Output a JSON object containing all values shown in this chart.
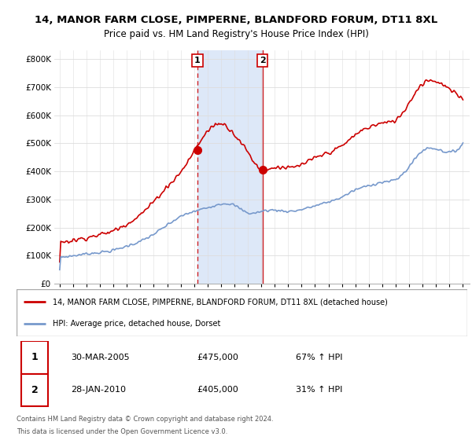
{
  "title": "14, MANOR FARM CLOSE, PIMPERNE, BLANDFORD FORUM, DT11 8XL",
  "subtitle": "Price paid vs. HM Land Registry's House Price Index (HPI)",
  "legend_line1": "14, MANOR FARM CLOSE, PIMPERNE, BLANDFORD FORUM, DT11 8XL (detached house)",
  "legend_line2": "HPI: Average price, detached house, Dorset",
  "footer1": "Contains HM Land Registry data © Crown copyright and database right 2024.",
  "footer2": "This data is licensed under the Open Government Licence v3.0.",
  "annotation1_label": "1",
  "annotation1_date": "30-MAR-2005",
  "annotation1_price": "£475,000",
  "annotation1_hpi": "67% ↑ HPI",
  "annotation2_label": "2",
  "annotation2_date": "28-JAN-2010",
  "annotation2_price": "£405,000",
  "annotation2_hpi": "31% ↑ HPI",
  "red_line_color": "#cc0000",
  "blue_line_color": "#7799cc",
  "shade_color": "#dde8f8",
  "bg_color": "#f5f5f5",
  "ylim": [
    0,
    830000
  ],
  "yticks": [
    0,
    100000,
    200000,
    300000,
    400000,
    500000,
    600000,
    700000,
    800000
  ],
  "sale1_x": 2005.25,
  "sale1_y": 475000,
  "sale2_x": 2010.08,
  "sale2_y": 405000,
  "vline1_x": 2005.25,
  "vline2_x": 2010.08,
  "xmin": 1995,
  "xmax": 2025.5
}
